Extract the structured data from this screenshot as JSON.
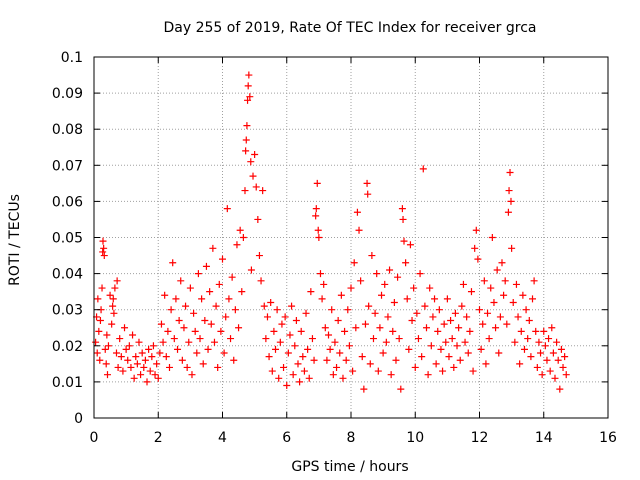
{
  "chart_data": {
    "type": "scatter",
    "title": "Day 255 of 2019, Rate Of TEC Index for receiver grca",
    "xlabel": "GPS time / hours",
    "ylabel": "ROTI / TECUs",
    "xlim": [
      0,
      16
    ],
    "ylim": [
      0,
      0.1
    ],
    "x_ticks": [
      0,
      2,
      4,
      6,
      8,
      10,
      12,
      14,
      16
    ],
    "x_tick_labels": [
      "0",
      "2",
      "4",
      "6",
      "8",
      "10",
      "12",
      "14",
      "16"
    ],
    "y_ticks": [
      0,
      0.01,
      0.02,
      0.03,
      0.04,
      0.05,
      0.06,
      0.07,
      0.08,
      0.09,
      0.1
    ],
    "y_tick_labels": [
      "0",
      "0.01",
      "0.02",
      "0.03",
      "0.04",
      "0.05",
      "0.06",
      "0.07",
      "0.08",
      "0.09",
      "0.1"
    ],
    "grid": true,
    "marker": "plus",
    "series_color": "#ff0000",
    "points": [
      [
        0.05,
        0.021
      ],
      [
        0.08,
        0.028
      ],
      [
        0.1,
        0.018
      ],
      [
        0.12,
        0.033
      ],
      [
        0.15,
        0.024
      ],
      [
        0.18,
        0.016
      ],
      [
        0.2,
        0.027
      ],
      [
        0.22,
        0.03
      ],
      [
        0.25,
        0.036
      ],
      [
        0.27,
        0.046
      ],
      [
        0.28,
        0.049
      ],
      [
        0.3,
        0.047
      ],
      [
        0.32,
        0.045
      ],
      [
        0.35,
        0.019
      ],
      [
        0.38,
        0.015
      ],
      [
        0.4,
        0.023
      ],
      [
        0.42,
        0.012
      ],
      [
        0.45,
        0.02
      ],
      [
        0.5,
        0.034
      ],
      [
        0.55,
        0.026
      ],
      [
        0.58,
        0.031
      ],
      [
        0.6,
        0.033
      ],
      [
        0.62,
        0.029
      ],
      [
        0.65,
        0.036
      ],
      [
        0.7,
        0.018
      ],
      [
        0.72,
        0.038
      ],
      [
        0.75,
        0.014
      ],
      [
        0.8,
        0.022
      ],
      [
        0.85,
        0.017
      ],
      [
        0.9,
        0.013
      ],
      [
        0.95,
        0.025
      ],
      [
        1.0,
        0.019
      ],
      [
        1.05,
        0.016
      ],
      [
        1.1,
        0.02
      ],
      [
        1.15,
        0.014
      ],
      [
        1.2,
        0.023
      ],
      [
        1.25,
        0.011
      ],
      [
        1.3,
        0.017
      ],
      [
        1.35,
        0.015
      ],
      [
        1.4,
        0.021
      ],
      [
        1.45,
        0.012
      ],
      [
        1.5,
        0.018
      ],
      [
        1.55,
        0.014
      ],
      [
        1.6,
        0.016
      ],
      [
        1.65,
        0.01
      ],
      [
        1.7,
        0.019
      ],
      [
        1.75,
        0.013
      ],
      [
        1.8,
        0.017
      ],
      [
        1.85,
        0.02
      ],
      [
        1.9,
        0.012
      ],
      [
        1.95,
        0.015
      ],
      [
        2.0,
        0.011
      ],
      [
        2.05,
        0.018
      ],
      [
        2.1,
        0.026
      ],
      [
        2.15,
        0.021
      ],
      [
        2.2,
        0.034
      ],
      [
        2.25,
        0.017
      ],
      [
        2.3,
        0.024
      ],
      [
        2.35,
        0.014
      ],
      [
        2.4,
        0.03
      ],
      [
        2.45,
        0.043
      ],
      [
        2.5,
        0.022
      ],
      [
        2.55,
        0.033
      ],
      [
        2.6,
        0.019
      ],
      [
        2.65,
        0.027
      ],
      [
        2.7,
        0.038
      ],
      [
        2.75,
        0.016
      ],
      [
        2.8,
        0.025
      ],
      [
        2.85,
        0.031
      ],
      [
        2.9,
        0.014
      ],
      [
        2.95,
        0.021
      ],
      [
        3.0,
        0.036
      ],
      [
        3.05,
        0.012
      ],
      [
        3.1,
        0.029
      ],
      [
        3.15,
        0.024
      ],
      [
        3.2,
        0.018
      ],
      [
        3.25,
        0.04
      ],
      [
        3.3,
        0.022
      ],
      [
        3.35,
        0.033
      ],
      [
        3.4,
        0.015
      ],
      [
        3.45,
        0.027
      ],
      [
        3.5,
        0.042
      ],
      [
        3.55,
        0.019
      ],
      [
        3.6,
        0.035
      ],
      [
        3.65,
        0.026
      ],
      [
        3.7,
        0.047
      ],
      [
        3.75,
        0.021
      ],
      [
        3.8,
        0.031
      ],
      [
        3.85,
        0.014
      ],
      [
        3.9,
        0.037
      ],
      [
        3.95,
        0.024
      ],
      [
        4.0,
        0.044
      ],
      [
        4.05,
        0.018
      ],
      [
        4.1,
        0.028
      ],
      [
        4.15,
        0.058
      ],
      [
        4.2,
        0.033
      ],
      [
        4.25,
        0.022
      ],
      [
        4.3,
        0.039
      ],
      [
        4.35,
        0.016
      ],
      [
        4.4,
        0.03
      ],
      [
        4.45,
        0.048
      ],
      [
        4.5,
        0.025
      ],
      [
        4.55,
        0.052
      ],
      [
        4.6,
        0.035
      ],
      [
        4.65,
        0.05
      ],
      [
        4.7,
        0.063
      ],
      [
        4.72,
        0.074
      ],
      [
        4.74,
        0.077
      ],
      [
        4.76,
        0.081
      ],
      [
        4.78,
        0.088
      ],
      [
        4.8,
        0.092
      ],
      [
        4.82,
        0.095
      ],
      [
        4.85,
        0.089
      ],
      [
        4.88,
        0.071
      ],
      [
        4.9,
        0.041
      ],
      [
        4.95,
        0.067
      ],
      [
        5.0,
        0.073
      ],
      [
        5.05,
        0.064
      ],
      [
        5.1,
        0.055
      ],
      [
        5.15,
        0.045
      ],
      [
        5.2,
        0.038
      ],
      [
        5.25,
        0.063
      ],
      [
        5.3,
        0.031
      ],
      [
        5.35,
        0.022
      ],
      [
        5.4,
        0.028
      ],
      [
        5.45,
        0.017
      ],
      [
        5.5,
        0.032
      ],
      [
        5.55,
        0.013
      ],
      [
        5.6,
        0.024
      ],
      [
        5.65,
        0.019
      ],
      [
        5.7,
        0.03
      ],
      [
        5.75,
        0.011
      ],
      [
        5.8,
        0.021
      ],
      [
        5.85,
        0.026
      ],
      [
        5.9,
        0.014
      ],
      [
        5.95,
        0.028
      ],
      [
        6.0,
        0.009
      ],
      [
        6.05,
        0.018
      ],
      [
        6.1,
        0.023
      ],
      [
        6.15,
        0.031
      ],
      [
        6.2,
        0.012
      ],
      [
        6.25,
        0.02
      ],
      [
        6.3,
        0.027
      ],
      [
        6.35,
        0.015
      ],
      [
        6.4,
        0.01
      ],
      [
        6.45,
        0.024
      ],
      [
        6.5,
        0.017
      ],
      [
        6.55,
        0.013
      ],
      [
        6.6,
        0.029
      ],
      [
        6.65,
        0.019
      ],
      [
        6.7,
        0.011
      ],
      [
        6.75,
        0.035
      ],
      [
        6.8,
        0.022
      ],
      [
        6.85,
        0.016
      ],
      [
        6.9,
        0.056
      ],
      [
        6.92,
        0.058
      ],
      [
        6.95,
        0.065
      ],
      [
        6.98,
        0.052
      ],
      [
        7.0,
        0.05
      ],
      [
        7.05,
        0.04
      ],
      [
        7.1,
        0.033
      ],
      [
        7.15,
        0.037
      ],
      [
        7.2,
        0.025
      ],
      [
        7.25,
        0.016
      ],
      [
        7.3,
        0.023
      ],
      [
        7.35,
        0.019
      ],
      [
        7.4,
        0.03
      ],
      [
        7.45,
        0.012
      ],
      [
        7.5,
        0.021
      ],
      [
        7.55,
        0.014
      ],
      [
        7.6,
        0.027
      ],
      [
        7.65,
        0.018
      ],
      [
        7.7,
        0.034
      ],
      [
        7.75,
        0.011
      ],
      [
        7.8,
        0.024
      ],
      [
        7.85,
        0.016
      ],
      [
        7.9,
        0.03
      ],
      [
        7.95,
        0.02
      ],
      [
        8.0,
        0.036
      ],
      [
        8.05,
        0.013
      ],
      [
        8.1,
        0.043
      ],
      [
        8.15,
        0.025
      ],
      [
        8.2,
        0.057
      ],
      [
        8.25,
        0.052
      ],
      [
        8.3,
        0.038
      ],
      [
        8.35,
        0.017
      ],
      [
        8.4,
        0.008
      ],
      [
        8.45,
        0.026
      ],
      [
        8.5,
        0.065
      ],
      [
        8.52,
        0.062
      ],
      [
        8.55,
        0.031
      ],
      [
        8.6,
        0.015
      ],
      [
        8.65,
        0.045
      ],
      [
        8.7,
        0.022
      ],
      [
        8.75,
        0.029
      ],
      [
        8.8,
        0.04
      ],
      [
        8.85,
        0.013
      ],
      [
        8.9,
        0.025
      ],
      [
        8.95,
        0.034
      ],
      [
        9.0,
        0.018
      ],
      [
        9.05,
        0.037
      ],
      [
        9.1,
        0.021
      ],
      [
        9.15,
        0.028
      ],
      [
        9.2,
        0.041
      ],
      [
        9.25,
        0.012
      ],
      [
        9.3,
        0.024
      ],
      [
        9.35,
        0.032
      ],
      [
        9.4,
        0.016
      ],
      [
        9.45,
        0.039
      ],
      [
        9.5,
        0.022
      ],
      [
        9.55,
        0.008
      ],
      [
        9.6,
        0.058
      ],
      [
        9.62,
        0.055
      ],
      [
        9.65,
        0.049
      ],
      [
        9.7,
        0.043
      ],
      [
        9.75,
        0.033
      ],
      [
        9.8,
        0.019
      ],
      [
        9.85,
        0.048
      ],
      [
        9.9,
        0.027
      ],
      [
        9.95,
        0.036
      ],
      [
        10.0,
        0.014
      ],
      [
        10.05,
        0.029
      ],
      [
        10.1,
        0.022
      ],
      [
        10.15,
        0.04
      ],
      [
        10.2,
        0.017
      ],
      [
        10.25,
        0.069
      ],
      [
        10.3,
        0.031
      ],
      [
        10.35,
        0.025
      ],
      [
        10.4,
        0.012
      ],
      [
        10.45,
        0.036
      ],
      [
        10.5,
        0.02
      ],
      [
        10.55,
        0.028
      ],
      [
        10.6,
        0.033
      ],
      [
        10.65,
        0.015
      ],
      [
        10.7,
        0.024
      ],
      [
        10.75,
        0.03
      ],
      [
        10.8,
        0.019
      ],
      [
        10.85,
        0.013
      ],
      [
        10.9,
        0.026
      ],
      [
        10.95,
        0.021
      ],
      [
        11.0,
        0.033
      ],
      [
        11.05,
        0.017
      ],
      [
        11.1,
        0.027
      ],
      [
        11.15,
        0.022
      ],
      [
        11.2,
        0.014
      ],
      [
        11.25,
        0.029
      ],
      [
        11.3,
        0.02
      ],
      [
        11.35,
        0.025
      ],
      [
        11.4,
        0.016
      ],
      [
        11.45,
        0.031
      ],
      [
        11.5,
        0.037
      ],
      [
        11.55,
        0.021
      ],
      [
        11.6,
        0.028
      ],
      [
        11.65,
        0.018
      ],
      [
        11.7,
        0.024
      ],
      [
        11.75,
        0.035
      ],
      [
        11.8,
        0.013
      ],
      [
        11.85,
        0.047
      ],
      [
        11.9,
        0.052
      ],
      [
        11.95,
        0.044
      ],
      [
        12.0,
        0.03
      ],
      [
        12.05,
        0.019
      ],
      [
        12.1,
        0.026
      ],
      [
        12.15,
        0.038
      ],
      [
        12.2,
        0.015
      ],
      [
        12.25,
        0.029
      ],
      [
        12.3,
        0.022
      ],
      [
        12.35,
        0.036
      ],
      [
        12.4,
        0.05
      ],
      [
        12.45,
        0.032
      ],
      [
        12.5,
        0.025
      ],
      [
        12.55,
        0.041
      ],
      [
        12.6,
        0.018
      ],
      [
        12.65,
        0.028
      ],
      [
        12.7,
        0.043
      ],
      [
        12.75,
        0.034
      ],
      [
        12.8,
        0.038
      ],
      [
        12.85,
        0.026
      ],
      [
        12.9,
        0.057
      ],
      [
        12.92,
        0.063
      ],
      [
        12.95,
        0.068
      ],
      [
        12.98,
        0.06
      ],
      [
        13.0,
        0.047
      ],
      [
        13.05,
        0.032
      ],
      [
        13.1,
        0.021
      ],
      [
        13.15,
        0.037
      ],
      [
        13.2,
        0.028
      ],
      [
        13.25,
        0.015
      ],
      [
        13.3,
        0.024
      ],
      [
        13.35,
        0.034
      ],
      [
        13.4,
        0.019
      ],
      [
        13.45,
        0.03
      ],
      [
        13.5,
        0.022
      ],
      [
        13.55,
        0.027
      ],
      [
        13.6,
        0.017
      ],
      [
        13.65,
        0.033
      ],
      [
        13.7,
        0.038
      ],
      [
        13.75,
        0.024
      ],
      [
        13.8,
        0.014
      ],
      [
        13.85,
        0.021
      ],
      [
        13.9,
        0.018
      ],
      [
        13.95,
        0.012
      ],
      [
        14.0,
        0.024
      ],
      [
        14.05,
        0.02
      ],
      [
        14.1,
        0.016
      ],
      [
        14.15,
        0.022
      ],
      [
        14.2,
        0.013
      ],
      [
        14.25,
        0.025
      ],
      [
        14.3,
        0.018
      ],
      [
        14.35,
        0.011
      ],
      [
        14.4,
        0.021
      ],
      [
        14.45,
        0.016
      ],
      [
        14.5,
        0.008
      ],
      [
        14.55,
        0.019
      ],
      [
        14.6,
        0.014
      ],
      [
        14.65,
        0.017
      ],
      [
        14.7,
        0.012
      ]
    ]
  }
}
